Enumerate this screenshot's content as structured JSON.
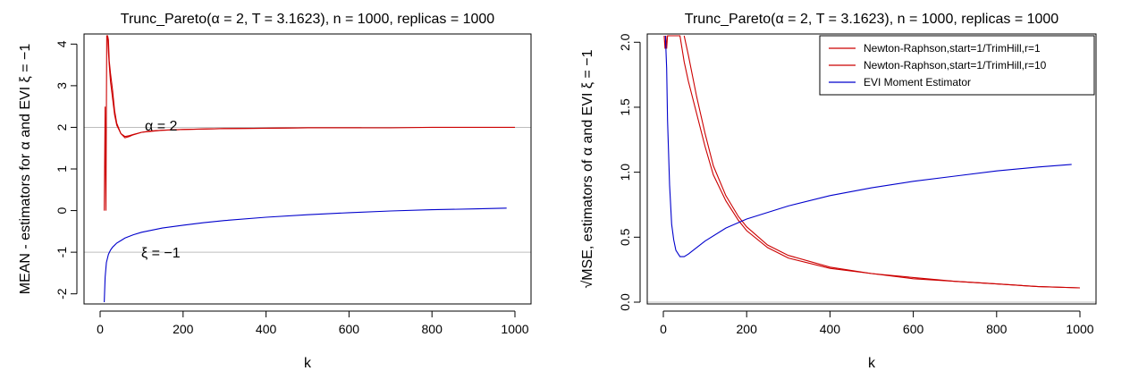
{
  "chart_data": [
    {
      "type": "line",
      "title": "Trunc_Pareto(α = 2, T = 3.1623), n = 1000, replicas = 1000",
      "xlabel": "k",
      "ylabel": "MEAN - estimators for α and EVI ξ = −1",
      "xlim": [
        0,
        1000
      ],
      "ylim": [
        -2.2,
        4.2
      ],
      "xticks": [
        "0",
        "200",
        "400",
        "600",
        "800",
        "1000"
      ],
      "yticks": [
        "-2",
        "-1",
        "0",
        "1",
        "2",
        "3",
        "4"
      ],
      "reference_lines": [
        2,
        -1
      ],
      "annotations": [
        "α = 2",
        "ξ = −1"
      ],
      "series": [
        {
          "color": "#cc0000",
          "x": [
            10,
            12,
            14,
            16,
            18,
            20,
            22,
            25,
            30,
            35,
            40,
            50,
            60,
            70,
            80,
            100,
            120,
            150,
            200,
            300,
            400,
            500,
            600,
            630
          ],
          "y": [
            0,
            2.5,
            0,
            4.2,
            4.2,
            4.1,
            3.6,
            3.3,
            2.9,
            2.4,
            2.1,
            1.85,
            1.75,
            1.78,
            1.82,
            1.88,
            1.9,
            1.93,
            1.95,
            1.97,
            1.98,
            1.99,
            1.99,
            1.99
          ]
        },
        {
          "color": "#cc0000",
          "x": [
            18,
            20,
            22,
            25,
            30,
            35,
            40,
            50,
            60,
            70,
            80,
            100,
            120,
            150,
            200,
            300,
            400,
            500,
            600,
            700,
            800,
            900,
            1000
          ],
          "y": [
            4.2,
            3.8,
            3.5,
            3.1,
            2.7,
            2.3,
            2.05,
            1.85,
            1.78,
            1.8,
            1.83,
            1.88,
            1.91,
            1.93,
            1.95,
            1.97,
            1.98,
            1.99,
            1.99,
            1.99,
            2.0,
            2.0,
            2.0
          ]
        },
        {
          "color": "#0000cc",
          "x": [
            10,
            12,
            15,
            20,
            25,
            30,
            40,
            50,
            60,
            80,
            100,
            150,
            200,
            250,
            300,
            400,
            500,
            600,
            700,
            800,
            900,
            980
          ],
          "y": [
            -2.2,
            -1.6,
            -1.25,
            -1.05,
            -0.95,
            -0.88,
            -0.78,
            -0.72,
            -0.66,
            -0.58,
            -0.52,
            -0.42,
            -0.35,
            -0.29,
            -0.24,
            -0.16,
            -0.1,
            -0.05,
            -0.01,
            0.02,
            0.04,
            0.06
          ]
        }
      ]
    },
    {
      "type": "line",
      "title": "Trunc_Pareto(α = 2, T = 3.1623), n = 1000, replicas = 1000",
      "xlabel": "k",
      "ylabel": "√MSE, estimators of α and EVI ξ = −1",
      "xlim": [
        0,
        1000
      ],
      "ylim": [
        0,
        2.05
      ],
      "xticks": [
        "0",
        "200",
        "400",
        "600",
        "800",
        "1000"
      ],
      "yticks": [
        "0.0",
        "0.5",
        "1.0",
        "1.5",
        "2.0"
      ],
      "reference_lines": [
        0
      ],
      "legend": {
        "position": "top-right",
        "entries": [
          {
            "label": "Newton-Raphson,start=1/TrimHill,r=1",
            "color": "#cc0000"
          },
          {
            "label": "Newton-Raphson,start=1/TrimHill,r=10",
            "color": "#cc0000"
          },
          {
            "label": "EVI Moment Estimator",
            "color": "#0000cc"
          }
        ]
      },
      "series": [
        {
          "color": "#cc0000",
          "x": [
            2,
            4,
            6,
            8,
            10,
            40,
            50,
            60,
            80,
            100,
            120,
            150,
            180,
            200,
            250,
            300,
            400,
            500,
            600,
            700,
            800,
            900,
            1000
          ],
          "y": [
            2.05,
            1.95,
            2.05,
            1.95,
            2.05,
            2.05,
            1.85,
            1.7,
            1.45,
            1.2,
            0.98,
            0.78,
            0.63,
            0.55,
            0.42,
            0.34,
            0.26,
            0.22,
            0.18,
            0.16,
            0.14,
            0.12,
            0.11
          ]
        },
        {
          "color": "#cc0000",
          "x": [
            50,
            60,
            80,
            100,
            120,
            150,
            180,
            200,
            250,
            300,
            400,
            500,
            600,
            700,
            800,
            900,
            1000
          ],
          "y": [
            2.05,
            1.9,
            1.58,
            1.3,
            1.05,
            0.82,
            0.66,
            0.58,
            0.44,
            0.36,
            0.27,
            0.22,
            0.19,
            0.16,
            0.14,
            0.12,
            0.11
          ]
        },
        {
          "color": "#0000cc",
          "x": [
            5,
            8,
            10,
            15,
            20,
            25,
            30,
            40,
            50,
            60,
            80,
            100,
            150,
            200,
            300,
            400,
            500,
            600,
            700,
            800,
            900,
            980
          ],
          "y": [
            2.05,
            1.8,
            1.4,
            0.9,
            0.6,
            0.48,
            0.4,
            0.35,
            0.35,
            0.37,
            0.42,
            0.47,
            0.57,
            0.64,
            0.74,
            0.82,
            0.88,
            0.93,
            0.97,
            1.01,
            1.04,
            1.06
          ]
        }
      ]
    }
  ]
}
